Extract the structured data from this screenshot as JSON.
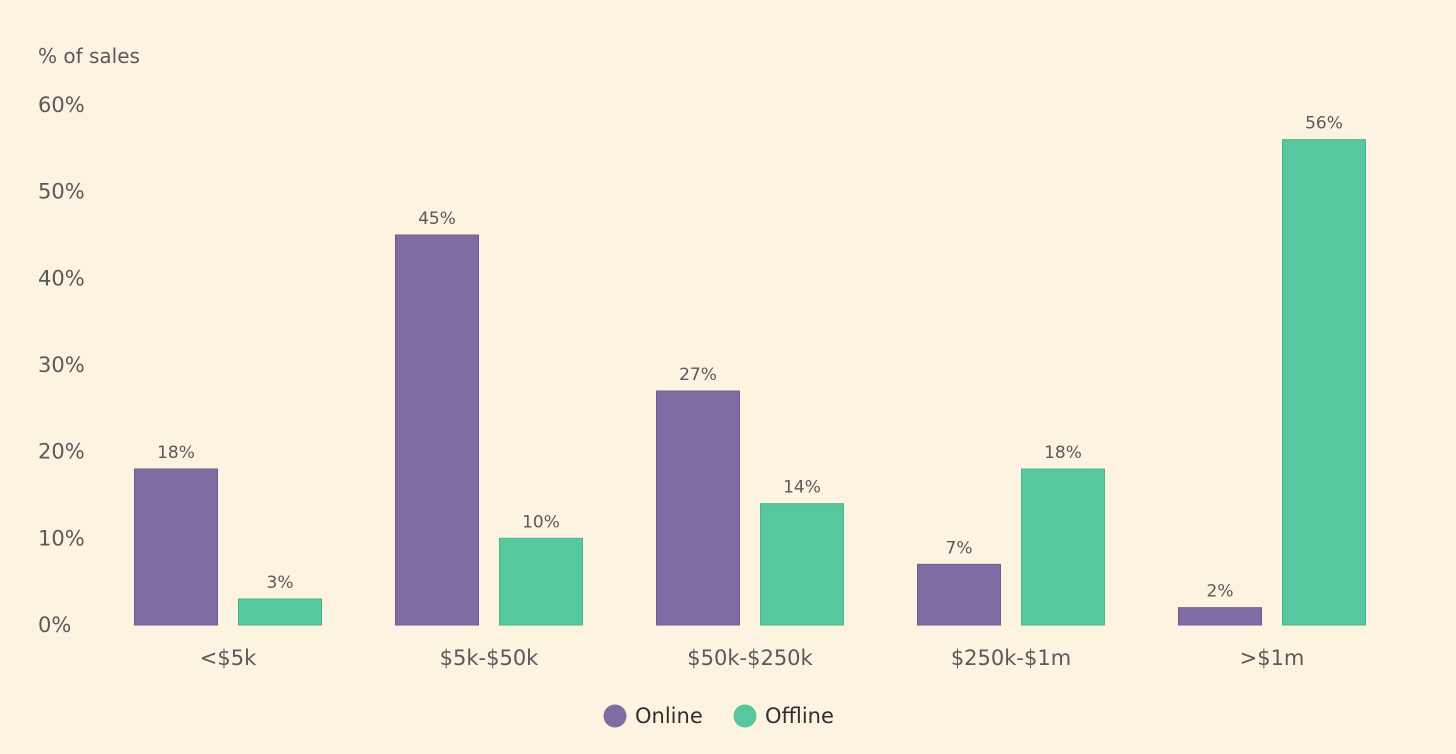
{
  "chart_data": {
    "type": "bar",
    "unit_label": "% of sales",
    "categories": [
      "<$5k",
      "$5k-$50k",
      "$50k-$250k",
      "$250k-$1m",
      ">$1m"
    ],
    "series": [
      {
        "name": "Online",
        "color": "#7f6ca3",
        "values": [
          18,
          45,
          27,
          7,
          2
        ],
        "labels": [
          "18%",
          "45%",
          "27%",
          "7%",
          "2%"
        ]
      },
      {
        "name": "Offline",
        "color": "#57c89e",
        "values": [
          3,
          10,
          14,
          18,
          56
        ],
        "labels": [
          "3%",
          "10%",
          "14%",
          "18%",
          "56%"
        ]
      }
    ],
    "ylim": [
      0,
      60
    ],
    "yticks": [
      "0%",
      "10%",
      "20%",
      "30%",
      "40%",
      "50%",
      "60%"
    ],
    "grid": false,
    "legend_position": "bottom"
  }
}
